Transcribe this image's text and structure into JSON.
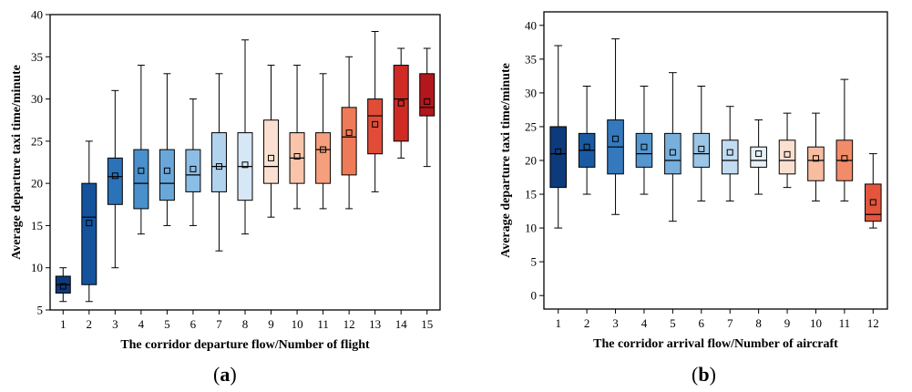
{
  "chart_data": [
    {
      "type": "box",
      "panel_label": "(a)",
      "xlabel": "The corridor departure flow/Number of flight",
      "ylabel": "Average departure taxi time/minute",
      "ylim": [
        5,
        40
      ],
      "yticks": [
        5,
        10,
        15,
        20,
        25,
        30,
        35,
        40
      ],
      "categories": [
        "1",
        "2",
        "3",
        "4",
        "5",
        "6",
        "7",
        "8",
        "9",
        "10",
        "11",
        "12",
        "13",
        "14",
        "15"
      ],
      "boxes": [
        {
          "min": 6,
          "q1": 7,
          "median": 8,
          "q3": 9,
          "max": 10,
          "mean": 7.8,
          "color": "#0d3a7a"
        },
        {
          "min": 6,
          "q1": 8,
          "median": 16,
          "q3": 20,
          "max": 25,
          "mean": 15.3,
          "color": "#14539c"
        },
        {
          "min": 10,
          "q1": 17.5,
          "median": 20.8,
          "q3": 23,
          "max": 31,
          "mean": 20.9,
          "color": "#2b72b8"
        },
        {
          "min": 14,
          "q1": 17,
          "median": 20,
          "q3": 24,
          "max": 34,
          "mean": 21.5,
          "color": "#4a90cc"
        },
        {
          "min": 15,
          "q1": 18,
          "median": 20,
          "q3": 24,
          "max": 33,
          "mean": 21.5,
          "color": "#6aa7d9"
        },
        {
          "min": 15,
          "q1": 19,
          "median": 21,
          "q3": 24,
          "max": 30,
          "mean": 21.7,
          "color": "#8cbde4"
        },
        {
          "min": 12,
          "q1": 19,
          "median": 22,
          "q3": 26,
          "max": 33,
          "mean": 22,
          "color": "#b2d3ee"
        },
        {
          "min": 14,
          "q1": 18,
          "median": 22,
          "q3": 26,
          "max": 37,
          "mean": 22.2,
          "color": "#d6e7f6"
        },
        {
          "min": 16,
          "q1": 20,
          "median": 22,
          "q3": 27.5,
          "max": 34,
          "mean": 23,
          "color": "#fbe0d2"
        },
        {
          "min": 17,
          "q1": 20,
          "median": 23,
          "q3": 26,
          "max": 34,
          "mean": 23.2,
          "color": "#f8c4aa"
        },
        {
          "min": 17,
          "q1": 20,
          "median": 24,
          "q3": 26,
          "max": 33,
          "mean": 24,
          "color": "#f59f7d"
        },
        {
          "min": 17,
          "q1": 21,
          "median": 25.5,
          "q3": 29,
          "max": 35,
          "mean": 26,
          "color": "#ef7a58"
        },
        {
          "min": 19,
          "q1": 23.5,
          "median": 28,
          "q3": 30,
          "max": 38,
          "mean": 27,
          "color": "#e04c38"
        },
        {
          "min": 23,
          "q1": 25,
          "median": 30,
          "q3": 34,
          "max": 36,
          "mean": 29.5,
          "color": "#cf2a24"
        },
        {
          "min": 22,
          "q1": 28,
          "median": 29,
          "q3": 33,
          "max": 36,
          "mean": 29.7,
          "color": "#b3161d"
        }
      ]
    },
    {
      "type": "box",
      "panel_label": "(b)",
      "xlabel": "The corridor arrival flow/Number of aircraft",
      "ylabel": "Average departure taxi time/minute",
      "ylim": [
        -2,
        42
      ],
      "yticks": [
        0,
        5,
        10,
        15,
        20,
        25,
        30,
        35,
        40
      ],
      "categories": [
        "1",
        "2",
        "3",
        "4",
        "5",
        "6",
        "7",
        "8",
        "9",
        "10",
        "11",
        "12"
      ],
      "boxes": [
        {
          "min": 10,
          "q1": 16,
          "median": 21,
          "q3": 25,
          "max": 37,
          "mean": 21.3,
          "color": "#0d3a7a"
        },
        {
          "min": 15,
          "q1": 19,
          "median": 21.5,
          "q3": 24,
          "max": 31,
          "mean": 22,
          "color": "#1a5aa3"
        },
        {
          "min": 12,
          "q1": 18,
          "median": 22,
          "q3": 26,
          "max": 38,
          "mean": 23.2,
          "color": "#3479bd"
        },
        {
          "min": 15,
          "q1": 19,
          "median": 21,
          "q3": 24,
          "max": 31,
          "mean": 22,
          "color": "#5596cf"
        },
        {
          "min": 11,
          "q1": 18,
          "median": 20,
          "q3": 24,
          "max": 33,
          "mean": 21.2,
          "color": "#78afdc"
        },
        {
          "min": 14,
          "q1": 19,
          "median": 21,
          "q3": 24,
          "max": 31,
          "mean": 21.7,
          "color": "#9cc6e8"
        },
        {
          "min": 14,
          "q1": 18,
          "median": 20,
          "q3": 23,
          "max": 28,
          "mean": 21.2,
          "color": "#c2dcf1"
        },
        {
          "min": 15,
          "q1": 19,
          "median": 20,
          "q3": 22,
          "max": 26,
          "mean": 21,
          "color": "#e6f0f9"
        },
        {
          "min": 16,
          "q1": 18,
          "median": 20,
          "q3": 23,
          "max": 27,
          "mean": 20.9,
          "color": "#fbe0d2"
        },
        {
          "min": 14,
          "q1": 17,
          "median": 20,
          "q3": 22,
          "max": 27,
          "mean": 20.3,
          "color": "#f8bda1"
        },
        {
          "min": 14,
          "q1": 17,
          "median": 20,
          "q3": 23,
          "max": 32,
          "mean": 20.3,
          "color": "#f28c68"
        },
        {
          "min": 10,
          "q1": 11,
          "median": 12,
          "q3": 16.5,
          "max": 21,
          "mean": 13.8,
          "color": "#e5553c"
        }
      ]
    }
  ]
}
